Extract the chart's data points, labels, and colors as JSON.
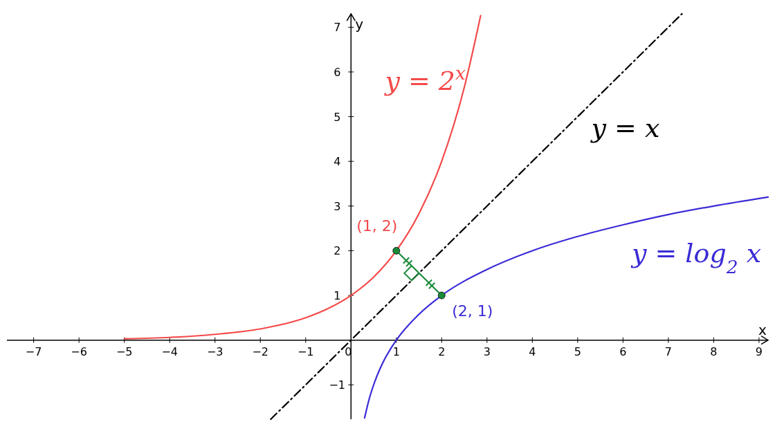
{
  "chart_data": {
    "type": "line",
    "xlabel": "x",
    "ylabel": "y",
    "xlim": [
      -7.59,
      9.2
    ],
    "ylim": [
      -1.77,
      7.3
    ],
    "xticks": [
      {
        "value": -7,
        "label": "−7"
      },
      {
        "value": -6,
        "label": "−6"
      },
      {
        "value": -5,
        "label": "−5"
      },
      {
        "value": -4,
        "label": "−4"
      },
      {
        "value": -3,
        "label": "−3"
      },
      {
        "value": -2,
        "label": "−2"
      },
      {
        "value": -1,
        "label": "−1"
      },
      0,
      1,
      2,
      3,
      4,
      5,
      6,
      7,
      8,
      9
    ],
    "yticks": [
      {
        "value": -1,
        "label": "−1"
      },
      1,
      2,
      3,
      4,
      5,
      6,
      7
    ],
    "series": [
      {
        "name": "y = 2$^{x}$",
        "color": "#f44a4a",
        "x": [
          -5,
          -4,
          -3,
          -2,
          -1,
          -0.5,
          0,
          0.5,
          1,
          1.5,
          2,
          2.5,
          2.86
        ],
        "values": [
          0.03,
          0.06,
          0.13,
          0.25,
          0.5,
          0.71,
          1,
          1.41,
          2,
          2.83,
          4,
          5.66,
          7.26
        ]
      },
      {
        "name": "y = x",
        "color": "#000000",
        "line_style": "dashed",
        "x": [
          -1.77,
          7.3
        ],
        "values": [
          -1.77,
          7.3
        ]
      },
      {
        "name": "y = log$_{2}$x",
        "color": "#3a2bd6",
        "x": [
          0.3,
          0.4,
          0.5,
          0.7,
          1,
          1.5,
          2,
          3,
          4,
          5,
          6,
          7,
          8,
          9.2
        ],
        "values": [
          -1.74,
          -1.32,
          -1,
          -0.51,
          0,
          0.58,
          1,
          1.58,
          2,
          2.32,
          2.58,
          2.81,
          3,
          3.2
        ]
      },
      {
        "color": "#1a8a3a",
        "x": [
          1,
          2
        ],
        "values": [
          2,
          1
        ]
      },
      {
        "type": "scatter",
        "marker": "circle",
        "color": "#1a8a3a",
        "x": [
          1,
          2
        ],
        "values": [
          2,
          1
        ]
      }
    ],
    "annotations": [
      {
        "text": "(1, 2)",
        "x": 1,
        "y": 2
      },
      {
        "text": "(2, 1)",
        "x": 2,
        "y": 1
      }
    ]
  }
}
